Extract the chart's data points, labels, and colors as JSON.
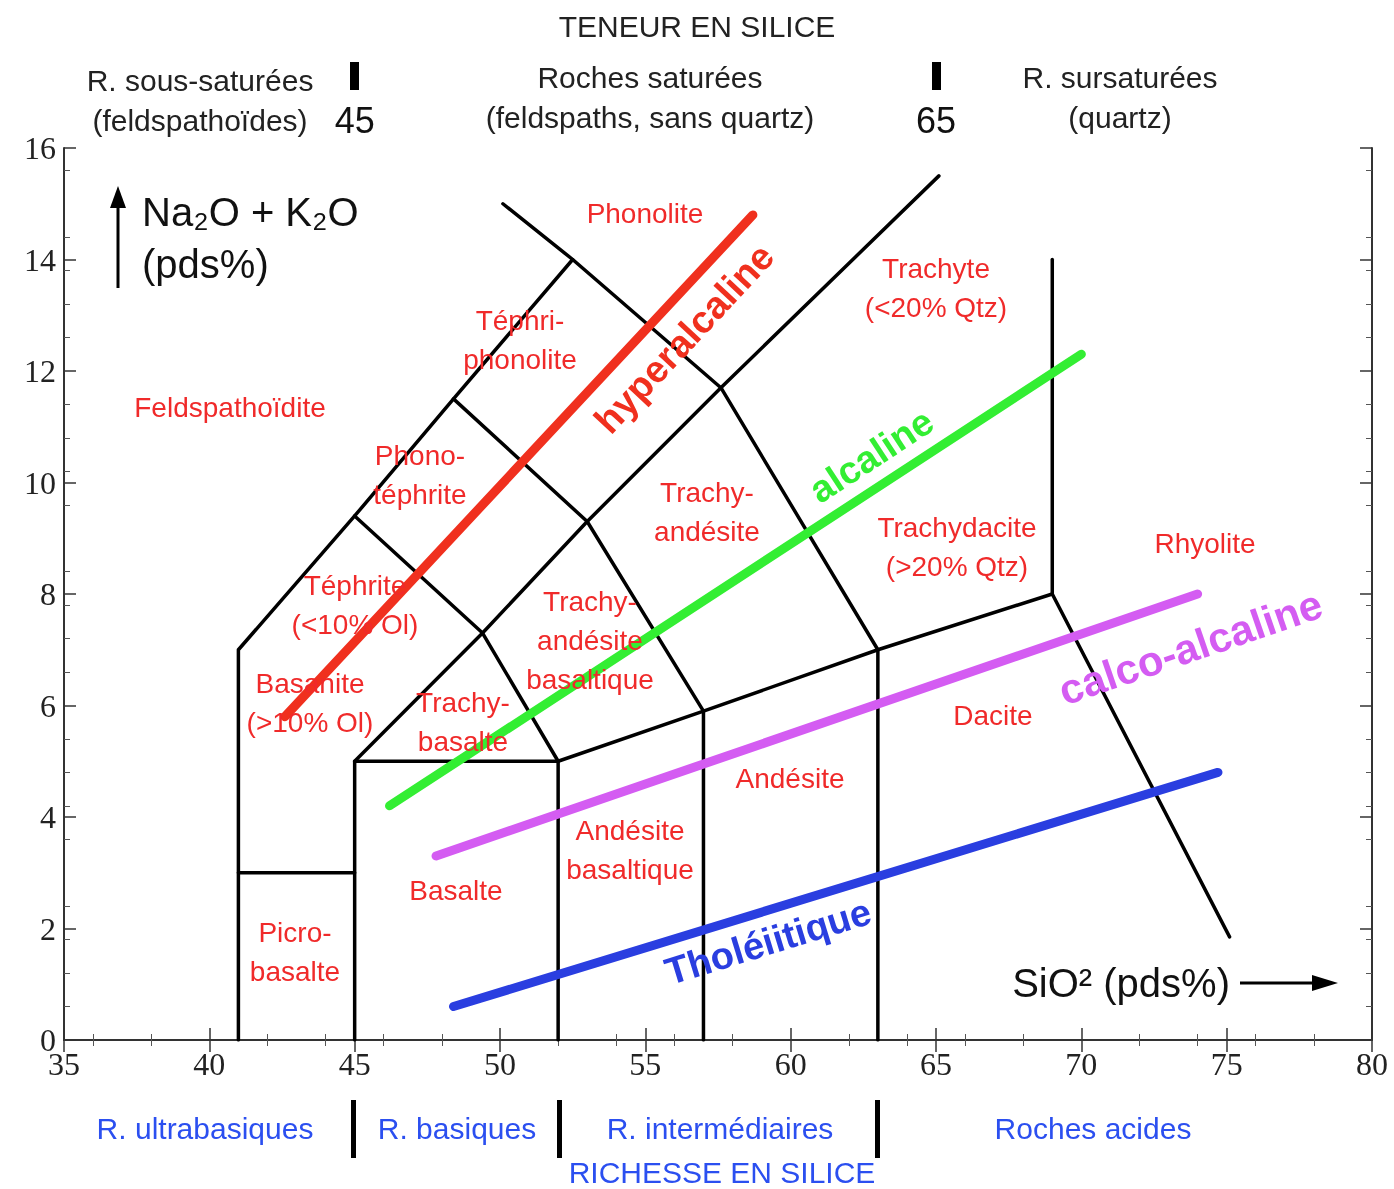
{
  "chart_data": {
    "type": "line",
    "title": "TENEUR EN SILICE",
    "xlabel": "SiO² (pds%)",
    "ylabel": "Na₂O + K₂O\n(pds%)",
    "xlim": [
      35,
      80
    ],
    "xticks": [
      35,
      40,
      45,
      50,
      55,
      60,
      65,
      70,
      75,
      80
    ],
    "ylim": [
      0,
      16
    ],
    "yticks": [
      0,
      2,
      4,
      6,
      8,
      10,
      12,
      14,
      16
    ],
    "x2lim": [
      35,
      80
    ],
    "x2ticks": [
      45,
      65
    ],
    "grid": false,
    "legend": false,
    "marker": "none",
    "line_style": "solid",
    "series": [
      {
        "color": "#000000",
        "x": [
          41,
          41,
          45,
          48.4,
          52.5,
          57.6,
          63,
          69,
          75.1
        ],
        "values": [
          0,
          7,
          9.4,
          11.5,
          14,
          11.7,
          7,
          8,
          1.85
        ]
      },
      {
        "color": "#000000",
        "x": [
          41,
          45
        ],
        "values": [
          3,
          3
        ]
      },
      {
        "color": "#000000",
        "x": [
          45,
          45,
          52,
          52
        ],
        "values": [
          0,
          5,
          5,
          0
        ]
      },
      {
        "color": "#000000",
        "x": [
          52,
          57,
          63
        ],
        "values": [
          5,
          5.9,
          7
        ]
      },
      {
        "color": "#000000",
        "x": [
          57,
          57,
          53,
          48.4
        ],
        "values": [
          0,
          5.9,
          9.3,
          11.5
        ]
      },
      {
        "color": "#000000",
        "x": [
          63,
          63
        ],
        "values": [
          0,
          7
        ]
      },
      {
        "color": "#000000",
        "x": [
          45,
          49.4,
          53,
          57.6,
          65.1
        ],
        "values": [
          5,
          7.3,
          9.3,
          11.7,
          15.5
        ]
      },
      {
        "color": "#000000",
        "x": [
          45,
          49.4,
          52
        ],
        "values": [
          9.4,
          7.3,
          5
        ]
      },
      {
        "color": "#000000",
        "x": [
          52.5,
          50.1
        ],
        "values": [
          14,
          15
        ]
      },
      {
        "color": "#000000",
        "x": [
          69,
          69
        ],
        "values": [
          8,
          14
        ]
      },
      {
        "name": "hyperalcaline",
        "color": "#f0301e",
        "x": [
          42.6,
          58.7
        ],
        "values": [
          5.8,
          14.8
        ]
      },
      {
        "name": "alcaline",
        "color": "#33ee33",
        "x": [
          46.2,
          70
        ],
        "values": [
          4.2,
          12.3
        ]
      },
      {
        "name": "calco-alcaline",
        "color": "#d45cf2",
        "x": [
          47.8,
          74
        ],
        "values": [
          3.3,
          8
        ]
      },
      {
        "name": "Tholéiitique",
        "color": "#2a3ee0",
        "x": [
          48.4,
          74.7
        ],
        "values": [
          0.6,
          4.8
        ]
      }
    ],
    "annotations": [
      "Phonolite",
      "Trachyte\n(<20% Qtz)",
      "Téphri-\nphonolite",
      "Feldspathoïdite",
      "Phono-\ntéphrite",
      "Trachy-\nandésite",
      "Trachydacite\n(>20% Qtz)",
      "Rhyolite",
      "Téphrite\n(<10% Ol)",
      "Trachy-\nandésite\nbasaltique",
      "Basanite\n(>10% Ol)",
      "Trachy-\nbasalte",
      "Dacite",
      "Andésite",
      "Andésite\nbasaltique",
      "Basalte",
      "Picro-\nbasalte",
      "R. sous-saturées\n(feldspathoïdes)",
      "Roches saturées\n(feldspaths, sans quartz)",
      "R. sursaturées\n(quartz)",
      "R. ultrabasiques",
      "R. basiques",
      "R. intermédiaires",
      "Roches acides",
      "RICHESSE EN SILICE"
    ]
  }
}
